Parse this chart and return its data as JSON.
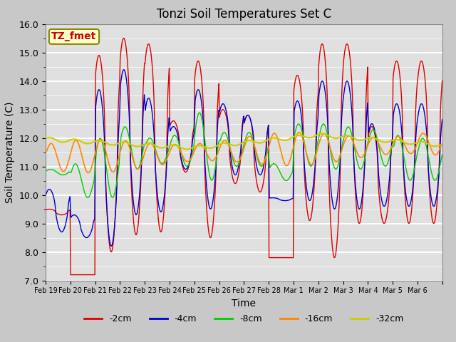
{
  "title": "Tonzi Soil Temperatures Set C",
  "xlabel": "Time",
  "ylabel": "Soil Temperature (C)",
  "ylim": [
    7.0,
    16.0
  ],
  "yticks": [
    7.0,
    8.0,
    9.0,
    10.0,
    11.0,
    12.0,
    13.0,
    14.0,
    15.0,
    16.0
  ],
  "annotation_text": "TZ_fmet",
  "annotation_color": "#cc0000",
  "annotation_bg": "#ffffcc",
  "annotation_border": "#888800",
  "colors": {
    "-2cm": "#dd0000",
    "-4cm": "#0000cc",
    "-8cm": "#00cc00",
    "-16cm": "#ff8800",
    "-32cm": "#cccc00"
  },
  "legend_labels": [
    "-2cm",
    "-4cm",
    "-8cm",
    "-16cm",
    "-32cm"
  ],
  "fig_facecolor": "#c8c8c8",
  "ax_facecolor": "#e0e0e0",
  "x_tick_labels": [
    "Feb 19",
    "Feb 20",
    "Feb 21",
    "Feb 22",
    "Feb 23",
    "Feb 24",
    "Feb 25",
    "Feb 26",
    "Feb 27",
    "Feb 28",
    "Mar 1",
    "Mar 2",
    "Mar 3",
    "Mar 4",
    "Mar 5",
    "Mar 6"
  ]
}
